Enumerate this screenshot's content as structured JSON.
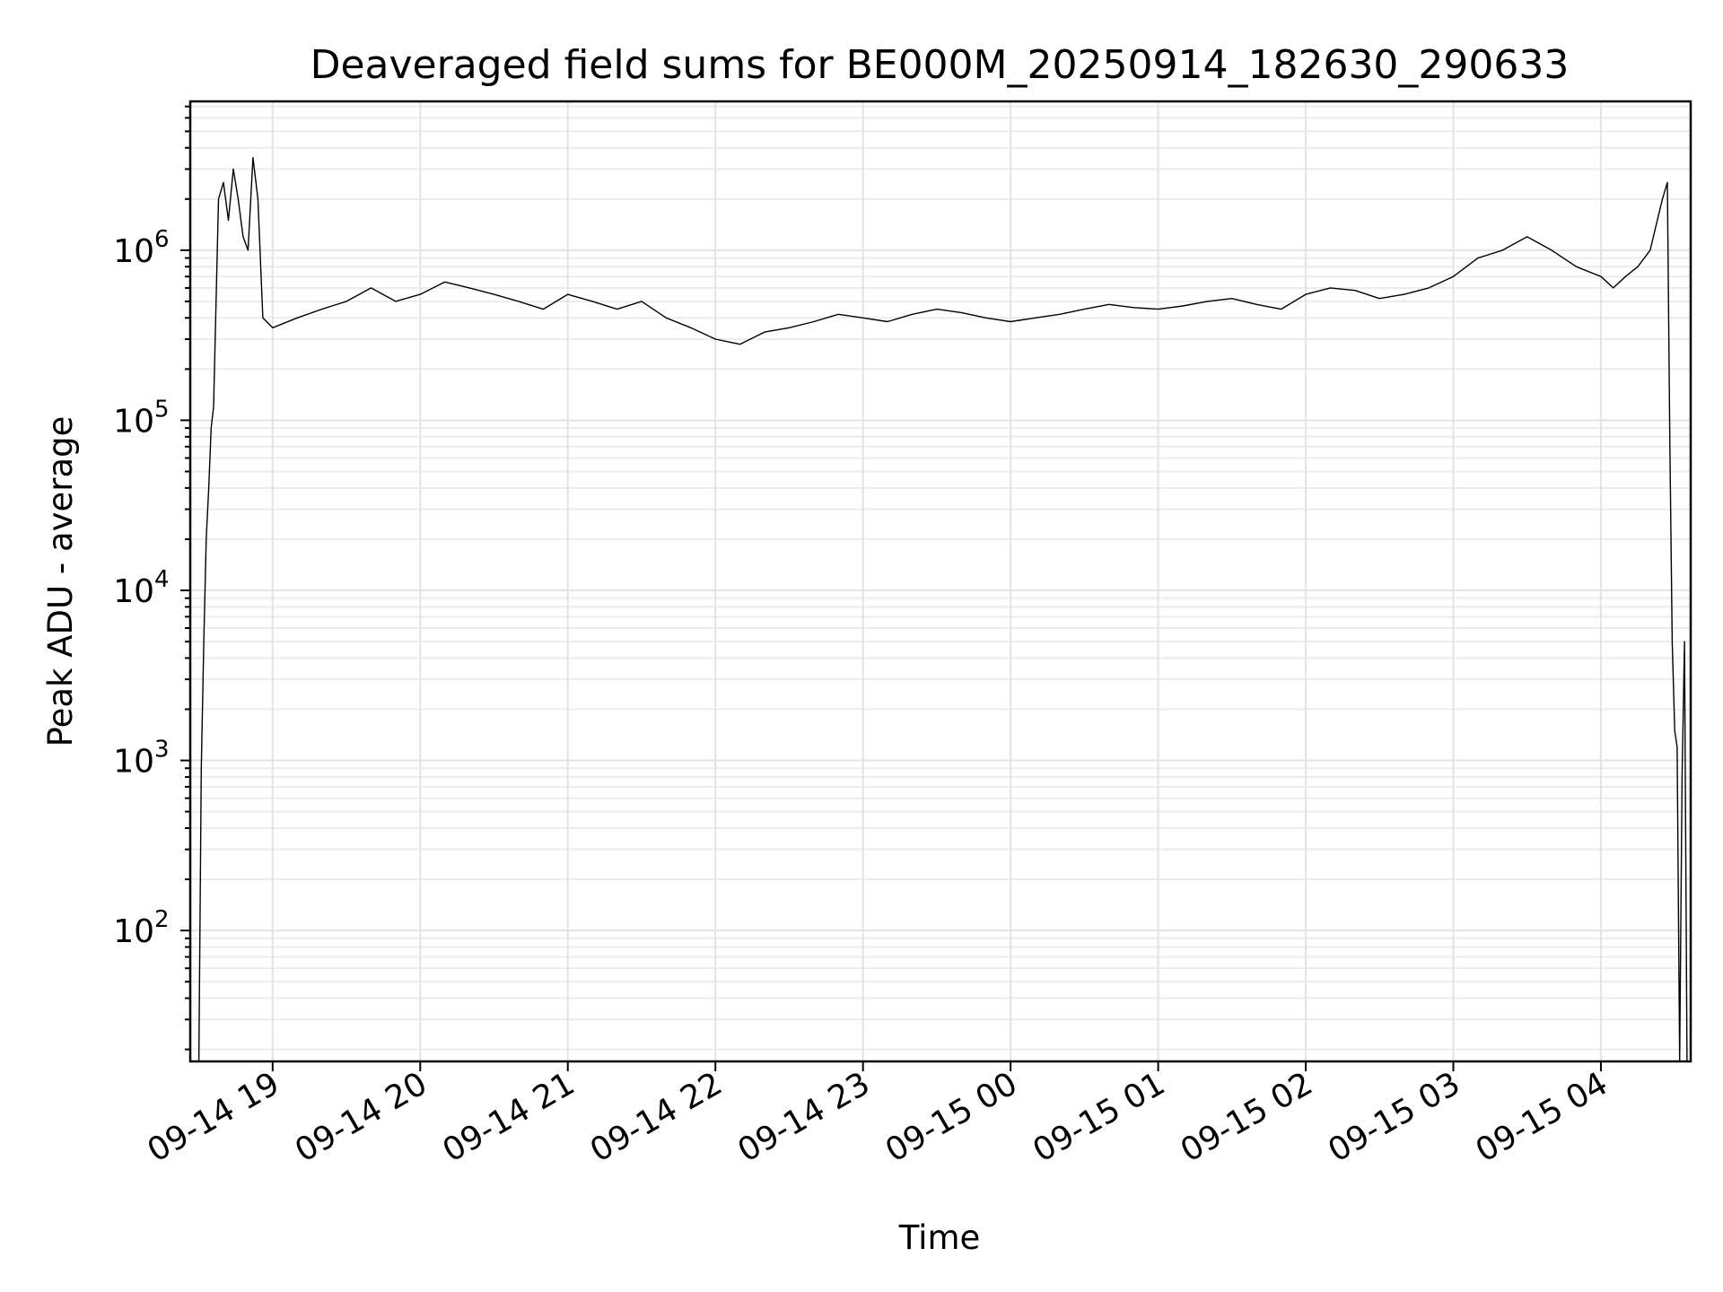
{
  "chart_data": {
    "type": "line",
    "title": "Deaveraged field sums for BE000M_20250914_182630_290633",
    "xlabel": "Time",
    "ylabel": "Peak ADU - average",
    "yscale": "log",
    "ylim": [
      17,
      7500000
    ],
    "xlim": [
      "2025-09-14 18:26:30",
      "2025-09-15 04:36:30"
    ],
    "grid": true,
    "xticks": [
      {
        "t": "2025-09-14 19:00",
        "label": "09-14 19"
      },
      {
        "t": "2025-09-14 20:00",
        "label": "09-14 20"
      },
      {
        "t": "2025-09-14 21:00",
        "label": "09-14 21"
      },
      {
        "t": "2025-09-14 22:00",
        "label": "09-14 22"
      },
      {
        "t": "2025-09-14 23:00",
        "label": "09-14 23"
      },
      {
        "t": "2025-09-15 00:00",
        "label": "09-15 00"
      },
      {
        "t": "2025-09-15 01:00",
        "label": "09-15 01"
      },
      {
        "t": "2025-09-15 02:00",
        "label": "09-15 02"
      },
      {
        "t": "2025-09-15 03:00",
        "label": "09-15 03"
      },
      {
        "t": "2025-09-15 04:00",
        "label": "09-15 04"
      }
    ],
    "yticks": [
      {
        "value": 100,
        "base": "10",
        "exp": "2"
      },
      {
        "value": 1000,
        "base": "10",
        "exp": "3"
      },
      {
        "value": 10000,
        "base": "10",
        "exp": "4"
      },
      {
        "value": 100000,
        "base": "10",
        "exp": "5"
      },
      {
        "value": 1000000,
        "base": "10",
        "exp": "6"
      }
    ],
    "series": [
      {
        "color": "#000000",
        "x": [
          "2025-09-14 18:30",
          "2025-09-14 18:31",
          "2025-09-14 18:32",
          "2025-09-14 18:33",
          "2025-09-14 18:34",
          "2025-09-14 18:35",
          "2025-09-14 18:36",
          "2025-09-14 18:38",
          "2025-09-14 18:40",
          "2025-09-14 18:42",
          "2025-09-14 18:44",
          "2025-09-14 18:46",
          "2025-09-14 18:48",
          "2025-09-14 18:50",
          "2025-09-14 18:52",
          "2025-09-14 18:54",
          "2025-09-14 18:56",
          "2025-09-14 19:00",
          "2025-09-14 19:10",
          "2025-09-14 19:20",
          "2025-09-14 19:30",
          "2025-09-14 19:40",
          "2025-09-14 19:50",
          "2025-09-14 20:00",
          "2025-09-14 20:10",
          "2025-09-14 20:20",
          "2025-09-14 20:30",
          "2025-09-14 20:40",
          "2025-09-14 20:50",
          "2025-09-14 21:00",
          "2025-09-14 21:10",
          "2025-09-14 21:20",
          "2025-09-14 21:30",
          "2025-09-14 21:40",
          "2025-09-14 21:50",
          "2025-09-14 22:00",
          "2025-09-14 22:10",
          "2025-09-14 22:20",
          "2025-09-14 22:30",
          "2025-09-14 22:40",
          "2025-09-14 22:50",
          "2025-09-14 23:00",
          "2025-09-14 23:10",
          "2025-09-14 23:20",
          "2025-09-14 23:30",
          "2025-09-14 23:40",
          "2025-09-14 23:50",
          "2025-09-15 00:00",
          "2025-09-15 00:10",
          "2025-09-15 00:20",
          "2025-09-15 00:30",
          "2025-09-15 00:40",
          "2025-09-15 00:50",
          "2025-09-15 01:00",
          "2025-09-15 01:10",
          "2025-09-15 01:20",
          "2025-09-15 01:30",
          "2025-09-15 01:40",
          "2025-09-15 01:50",
          "2025-09-15 02:00",
          "2025-09-15 02:10",
          "2025-09-15 02:20",
          "2025-09-15 02:30",
          "2025-09-15 02:40",
          "2025-09-15 02:50",
          "2025-09-15 03:00",
          "2025-09-15 03:10",
          "2025-09-15 03:20",
          "2025-09-15 03:30",
          "2025-09-15 03:40",
          "2025-09-15 03:50",
          "2025-09-15 04:00",
          "2025-09-15 04:05",
          "2025-09-15 04:10",
          "2025-09-15 04:15",
          "2025-09-15 04:20",
          "2025-09-15 04:25",
          "2025-09-15 04:27",
          "2025-09-15 04:28",
          "2025-09-15 04:29",
          "2025-09-15 04:30",
          "2025-09-15 04:31",
          "2025-09-15 04:32",
          "2025-09-15 04:33",
          "2025-09-15 04:34",
          "2025-09-15 04:35"
        ],
        "values": [
          17,
          900,
          5000,
          20000,
          40000,
          90000,
          120000,
          2000000,
          2500000,
          1500000,
          3000000,
          2000000,
          1200000,
          1000000,
          3500000,
          2000000,
          400000,
          350000,
          400000,
          450000,
          500000,
          600000,
          500000,
          550000,
          650000,
          600000,
          550000,
          500000,
          450000,
          550000,
          500000,
          450000,
          500000,
          400000,
          350000,
          300000,
          280000,
          330000,
          350000,
          380000,
          420000,
          400000,
          380000,
          420000,
          450000,
          430000,
          400000,
          380000,
          400000,
          420000,
          450000,
          480000,
          460000,
          450000,
          470000,
          500000,
          520000,
          480000,
          450000,
          550000,
          600000,
          580000,
          520000,
          550000,
          600000,
          700000,
          900000,
          1000000,
          1200000,
          1000000,
          800000,
          700000,
          600000,
          700000,
          800000,
          1000000,
          2000000,
          2500000,
          80000,
          5000,
          1500,
          1200,
          17,
          800,
          5000,
          17
        ]
      }
    ]
  }
}
